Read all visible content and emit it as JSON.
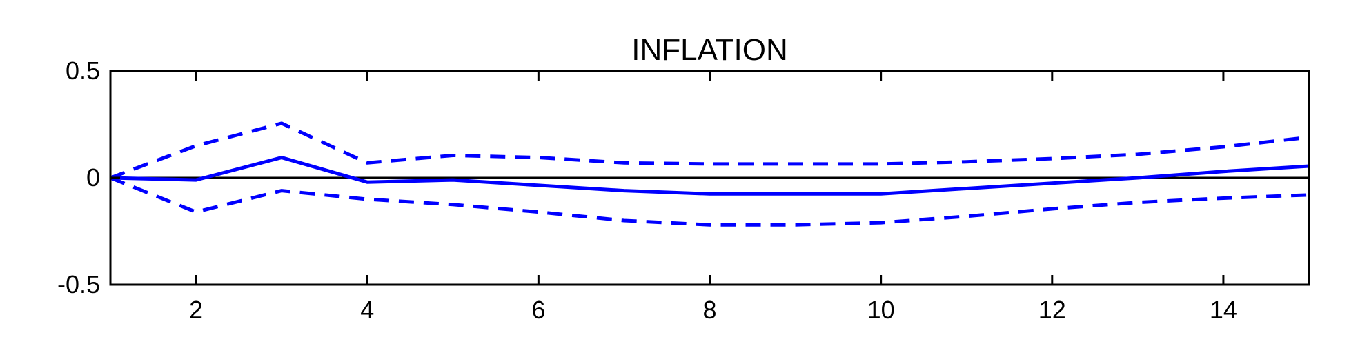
{
  "chart_data": {
    "type": "line",
    "title": "INFLATION",
    "xlabel": "",
    "ylabel": "",
    "xlim": [
      1,
      15
    ],
    "ylim": [
      -0.5,
      0.5
    ],
    "x_ticks": [
      2,
      4,
      6,
      8,
      10,
      12,
      14
    ],
    "x_tick_labels": [
      "2",
      "4",
      "6",
      "8",
      "10",
      "12",
      "14"
    ],
    "y_ticks": [
      0.5,
      0,
      -0.5
    ],
    "y_tick_labels": [
      "0.5",
      "0",
      "-0.5"
    ],
    "grid": false,
    "zero_line": true,
    "x": [
      1,
      2,
      3,
      4,
      5,
      6,
      7,
      8,
      9,
      10,
      11,
      12,
      13,
      14,
      15
    ],
    "series": [
      {
        "line_style": "solid",
        "color": "#0000ff",
        "values": [
          0.0,
          -0.01,
          0.095,
          -0.02,
          -0.01,
          -0.035,
          -0.06,
          -0.075,
          -0.075,
          -0.075,
          -0.05,
          -0.025,
          0.0,
          0.03,
          0.055
        ]
      },
      {
        "line_style": "dashed",
        "color": "#0000ff",
        "values": [
          0.0,
          0.15,
          0.255,
          0.07,
          0.105,
          0.095,
          0.07,
          0.065,
          0.065,
          0.065,
          0.075,
          0.09,
          0.11,
          0.145,
          0.19
        ]
      },
      {
        "line_style": "dashed",
        "color": "#0000ff",
        "values": [
          0.0,
          -0.16,
          -0.06,
          -0.1,
          -0.125,
          -0.16,
          -0.2,
          -0.22,
          -0.22,
          -0.21,
          -0.18,
          -0.145,
          -0.115,
          -0.095,
          -0.08
        ]
      }
    ]
  },
  "style": {
    "axis_color": "#000000",
    "zero_line_color": "#000000"
  }
}
